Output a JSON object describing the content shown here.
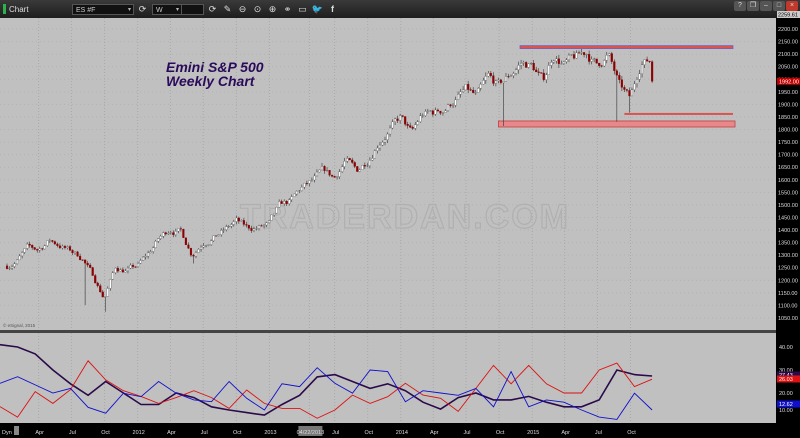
{
  "window": {
    "title": "Chart",
    "symbol": "ES #F",
    "interval": "W",
    "toolbar_icons": [
      "refresh-icon",
      "refresh-icon",
      "pencil-icon",
      "zoom-out-icon",
      "zoom-reset-icon",
      "zoom-in-icon",
      "link-icon",
      "comment-icon",
      "twitter-icon",
      "facebook-icon"
    ],
    "window_buttons": [
      "help",
      "restore",
      "minimize",
      "maximize",
      "close"
    ]
  },
  "chart_title": [
    "Emini S&P 500",
    "Weekly Chart"
  ],
  "watermark": "TRADERDAN.COM",
  "copyright": "© eSignal, 2015",
  "dynamic_label": "Dyn",
  "chart_data": [
    {
      "type": "candlestick",
      "title": "Emini S&P 500 Weekly Chart",
      "period": "weekly",
      "ylim": [
        1025,
        2260
      ],
      "y_ticks": [
        "2200.00",
        "2150.00",
        "2100.00",
        "2050.00",
        "2000.00",
        "1950.00",
        "1900.00",
        "1850.00",
        "1800.00",
        "1750.00",
        "1700.00",
        "1650.00",
        "1600.00",
        "1550.00",
        "1500.00",
        "1450.00",
        "1400.00",
        "1350.00",
        "1300.00",
        "1250.00",
        "1200.00",
        "1150.00",
        "1100.00",
        "1050.00"
      ],
      "top_label": "2259.61",
      "last_price": "1992.00",
      "approx_closes": [
        [
          "2010-12",
          1255
        ],
        [
          "2011-01",
          1280
        ],
        [
          "2011-02",
          1325
        ],
        [
          "2011-03",
          1320
        ],
        [
          "2011-04",
          1360
        ],
        [
          "2011-05",
          1340
        ],
        [
          "2011-06",
          1315
        ],
        [
          "2011-07",
          1290
        ],
        [
          "2011-08",
          1215
        ],
        [
          "2011-09",
          1130
        ],
        [
          "2011-10",
          1250
        ],
        [
          "2011-11",
          1240
        ],
        [
          "2011-12",
          1255
        ],
        [
          "2012-01",
          1305
        ],
        [
          "2012-02",
          1365
        ],
        [
          "2012-03",
          1405
        ],
        [
          "2012-04",
          1395
        ],
        [
          "2012-05",
          1305
        ],
        [
          "2012-06",
          1355
        ],
        [
          "2012-07",
          1375
        ],
        [
          "2012-08",
          1400
        ],
        [
          "2012-09",
          1435
        ],
        [
          "2012-10",
          1405
        ],
        [
          "2012-11",
          1410
        ],
        [
          "2012-12",
          1420
        ],
        [
          "2013-01",
          1495
        ],
        [
          "2013-02",
          1510
        ],
        [
          "2013-03",
          1565
        ],
        [
          "2013-04",
          1590
        ],
        [
          "2013-05",
          1630
        ],
        [
          "2013-06",
          1605
        ],
        [
          "2013-07",
          1680
        ],
        [
          "2013-08",
          1630
        ],
        [
          "2013-09",
          1680
        ],
        [
          "2013-10",
          1755
        ],
        [
          "2013-11",
          1800
        ],
        [
          "2013-12",
          1845
        ],
        [
          "2014-01",
          1780
        ],
        [
          "2014-02",
          1855
        ],
        [
          "2014-03",
          1865
        ],
        [
          "2014-04",
          1880
        ],
        [
          "2014-05",
          1920
        ],
        [
          "2014-06",
          1955
        ],
        [
          "2014-07",
          1925
        ],
        [
          "2014-08",
          2000
        ],
        [
          "2014-09",
          1970
        ],
        [
          "2014-10",
          2015
        ],
        [
          "2014-11",
          2065
        ],
        [
          "2014-12",
          2055
        ],
        [
          "2015-01",
          1990
        ],
        [
          "2015-02",
          2100
        ],
        [
          "2015-03",
          2060
        ],
        [
          "2015-04",
          2080
        ],
        [
          "2015-05",
          2105
        ],
        [
          "2015-06",
          2055
        ],
        [
          "2015-07",
          2100
        ],
        [
          "2015-08",
          1970
        ],
        [
          "2015-09",
          1915
        ],
        [
          "2015-10",
          2075
        ],
        [
          "2015-11",
          2075
        ],
        [
          "2015-12-04",
          1992
        ]
      ],
      "key_lows": [
        [
          "2011-08-09",
          1101
        ],
        [
          "2011-10-04",
          1075
        ],
        [
          "2012-06-04",
          1267
        ],
        [
          "2014-10-15",
          1814
        ],
        [
          "2015-08-24",
          1831
        ],
        [
          "2015-09-29",
          1867
        ]
      ],
      "annotations": [
        {
          "kind": "resistance-line",
          "price": 2128,
          "from": "2014-11-28",
          "color": "#d9534f",
          "outline": "#6a5acd"
        },
        {
          "kind": "support-line",
          "price": 1862,
          "from": "2015-09-14",
          "color": "#d9534f"
        },
        {
          "kind": "support-zone",
          "price_low": 1810,
          "price_high": 1834,
          "from": "2014-09-29",
          "color": "#e8888a"
        }
      ],
      "x_ticks": [
        {
          "label": "Apr",
          "date": "2011-04-01"
        },
        {
          "label": "Jul",
          "date": "2011-07-01"
        },
        {
          "label": "Oct",
          "date": "2011-10-01"
        },
        {
          "label": "2012",
          "date": "2012-01-01"
        },
        {
          "label": "Apr",
          "date": "2012-04-01"
        },
        {
          "label": "Jul",
          "date": "2012-07-01"
        },
        {
          "label": "Oct",
          "date": "2012-10-01"
        },
        {
          "label": "2013",
          "date": "2013-01-01"
        },
        {
          "label": "04/22/2013",
          "date": "2013-04-22",
          "highlight": true
        },
        {
          "label": "Jul",
          "date": "2013-07-01"
        },
        {
          "label": "Oct",
          "date": "2013-10-01"
        },
        {
          "label": "2014",
          "date": "2014-01-01"
        },
        {
          "label": "Apr",
          "date": "2014-04-01"
        },
        {
          "label": "Jul",
          "date": "2014-07-01"
        },
        {
          "label": "Oct",
          "date": "2014-10-01"
        },
        {
          "label": "2015",
          "date": "2015-01-01"
        },
        {
          "label": "Apr",
          "date": "2015-04-01"
        },
        {
          "label": "Jul",
          "date": "2015-07-01"
        },
        {
          "label": "Oct",
          "date": "2015-10-01"
        }
      ],
      "grid": true,
      "up_color": "#ffffff",
      "down_color": "#8b0000"
    },
    {
      "type": "line",
      "ylim": [
        7,
        46
      ],
      "y_ticks": [
        "40.00",
        "30.00",
        "20.00",
        "10.00"
      ],
      "series": [
        {
          "color": "#2a0a4a",
          "last_label": "27.43",
          "values": [
            41,
            40,
            37,
            30,
            24,
            19,
            25,
            20,
            15,
            15,
            20,
            18,
            14,
            12.6,
            11.5,
            10.4,
            15,
            19,
            27,
            28,
            25,
            22,
            24,
            21,
            16,
            13,
            18,
            20,
            17,
            17,
            18.5,
            16,
            14,
            14,
            17,
            30,
            28,
            27.4
          ]
        },
        {
          "color": "#dd1111",
          "last_label": "26.03",
          "values": [
            14.1,
            9.5,
            20.6,
            15.5,
            21.5,
            34,
            25.7,
            21,
            18.5,
            15.5,
            18,
            21,
            18,
            13.3,
            21.3,
            15.5,
            13.3,
            13.3,
            9,
            12.6,
            19.1,
            15.5,
            18.4,
            24.2,
            19.1,
            17.7,
            12,
            22,
            32,
            24,
            32,
            24,
            20,
            20,
            30,
            33,
            22.8,
            26
          ]
        },
        {
          "color": "#1010cc",
          "last_label": "12.62",
          "values": [
            24.2,
            27.1,
            23.5,
            20,
            22,
            13.8,
            11.2,
            19.9,
            18.4,
            25,
            19.9,
            17,
            16.2,
            25,
            17.7,
            12.6,
            24,
            22.8,
            31,
            24.2,
            19.9,
            30,
            29.3,
            16.2,
            21,
            20,
            19,
            22,
            14,
            29.3,
            14,
            17,
            16,
            12.6,
            9.5,
            8.5,
            19.9,
            12.6
          ]
        }
      ]
    }
  ]
}
